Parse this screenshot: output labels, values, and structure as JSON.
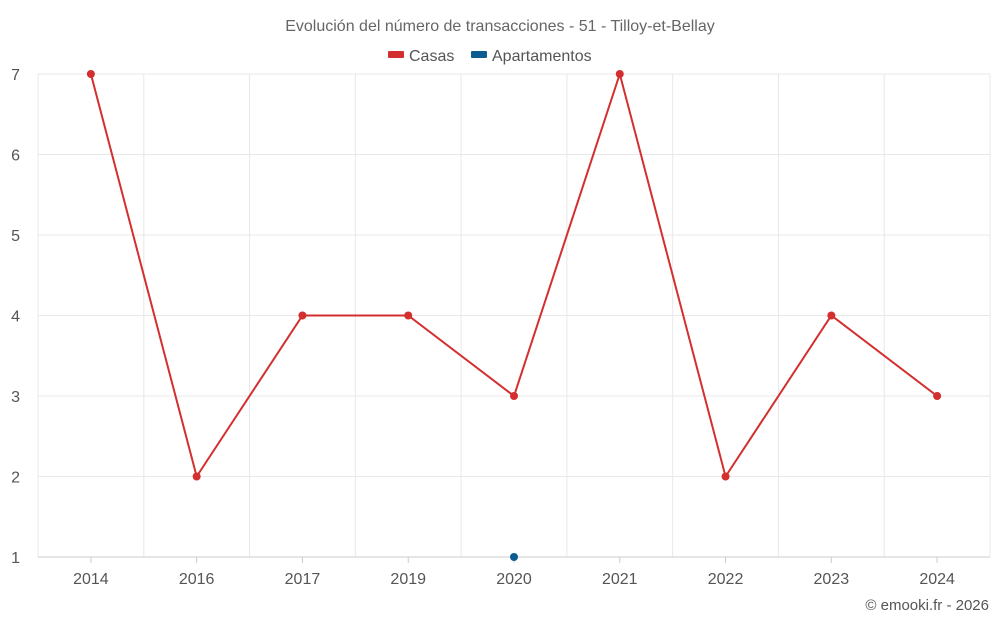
{
  "chart_data": {
    "type": "line",
    "title": "Evolución del número de transacciones - 51 - Tilloy-et-Bellay",
    "categories": [
      "2014",
      "2016",
      "2017",
      "2019",
      "2020",
      "2021",
      "2022",
      "2023",
      "2024"
    ],
    "series": [
      {
        "name": "Casas",
        "color": "#d32f2f",
        "values": [
          7,
          2,
          4,
          4,
          3,
          7,
          2,
          4,
          3
        ]
      },
      {
        "name": "Apartamentos",
        "color": "#0d5c91",
        "values": [
          null,
          null,
          null,
          null,
          1,
          null,
          null,
          null,
          null
        ]
      }
    ],
    "yticks": [
      "1",
      "2",
      "3",
      "4",
      "5",
      "6",
      "7"
    ],
    "ylim": [
      1,
      7
    ],
    "grid": true,
    "legend": "top-center"
  },
  "credit": "© emooki.fr - 2026"
}
